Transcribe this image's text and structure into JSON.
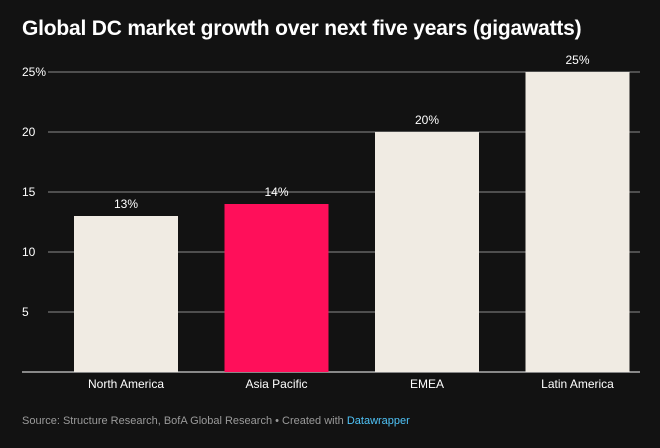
{
  "title": "Global DC market growth over next five years (gigawatts)",
  "source": {
    "text": "Source: Structure Research, BofA Global Research • Created with ",
    "brand": "Datawrapper"
  },
  "colors": {
    "background": "#121212",
    "bar_default": "#f0ebe3",
    "bar_highlight": "#ff0f5a",
    "grid": "#8a8a8a",
    "brand": "#4fc3f7"
  },
  "chart_data": {
    "type": "bar",
    "title": "Global DC market growth over next five years (gigawatts)",
    "categories": [
      "North America",
      "Asia Pacific",
      "EMEA",
      "Latin America"
    ],
    "values": [
      13,
      14,
      20,
      25
    ],
    "data_labels": [
      "13%",
      "14%",
      "20%",
      "25%"
    ],
    "highlight_index": 1,
    "ylim": [
      0,
      25
    ],
    "yticks": [
      5,
      10,
      15,
      20,
      25
    ],
    "ytick_labels": [
      "5",
      "10",
      "15",
      "20",
      "25%"
    ],
    "grid": true,
    "legend": "none",
    "xlabel": "",
    "ylabel": ""
  }
}
